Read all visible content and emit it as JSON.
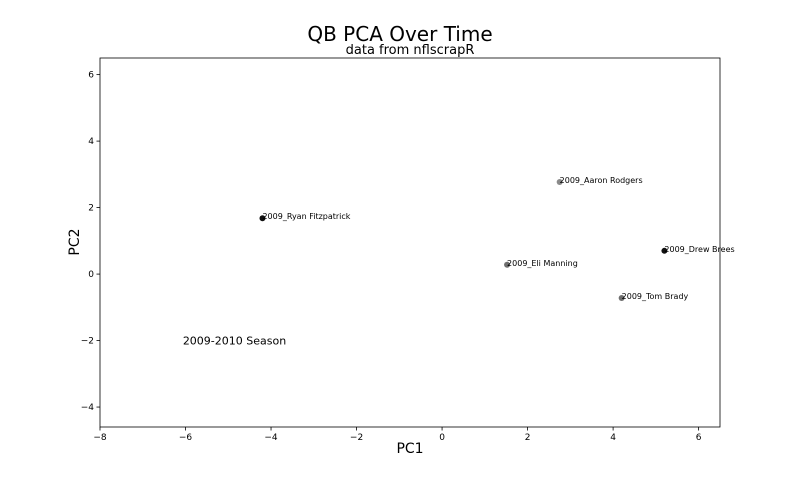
{
  "chart_data": {
    "type": "scatter",
    "title": "QB PCA Over Time",
    "subtitle": "data from nflscrapR",
    "xlabel": "PC1",
    "ylabel": "PC2",
    "xlim": [
      -8,
      6.5
    ],
    "ylim": [
      -4.6,
      6.5
    ],
    "xticks": [
      -8,
      -6,
      -4,
      -2,
      0,
      2,
      4,
      6
    ],
    "yticks": [
      -4,
      -2,
      0,
      2,
      4,
      6
    ],
    "grid": false,
    "annotation": {
      "text": "2009-2010 Season",
      "x": -6,
      "y": -2
    },
    "points": [
      {
        "label": "2009_Ryan Fitzpatrick",
        "x": -4.2,
        "y": 1.68,
        "color": "#111111"
      },
      {
        "label": "2009_Aaron Rodgers",
        "x": 2.75,
        "y": 2.77,
        "color": "#8a8a8a"
      },
      {
        "label": "2009_Drew Brees",
        "x": 5.2,
        "y": 0.7,
        "color": "#111111"
      },
      {
        "label": "2009_Eli Manning",
        "x": 1.52,
        "y": 0.28,
        "color": "#6e6e6e"
      },
      {
        "label": "2009_Tom Brady",
        "x": 4.2,
        "y": -0.72,
        "color": "#6e6e6e"
      }
    ]
  }
}
